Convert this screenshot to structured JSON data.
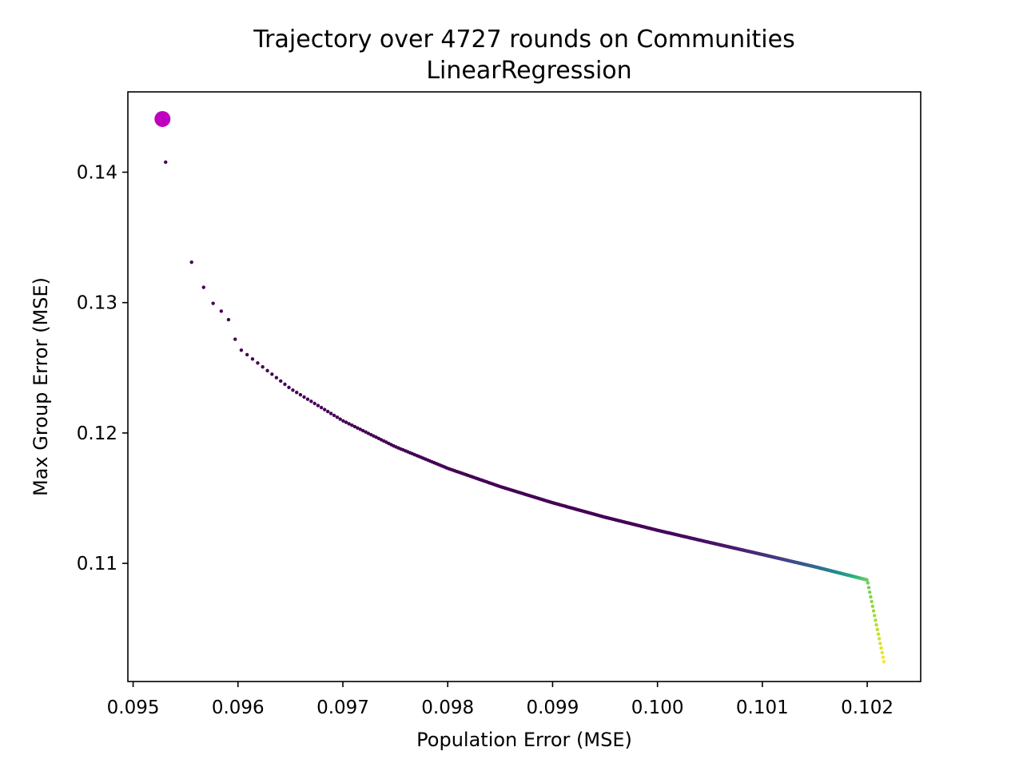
{
  "chart_data": {
    "type": "scatter",
    "title": "Trajectory over 4727 rounds on Communities",
    "subtitle": "LinearRegression",
    "xlabel": "Population Error (MSE)",
    "ylabel": "Max Group Error (MSE)",
    "xlim": [
      0.09495,
      0.10251
    ],
    "ylim": [
      0.10094,
      0.14616
    ],
    "xticks": [
      "0.095",
      "0.096",
      "0.097",
      "0.098",
      "0.099",
      "0.100",
      "0.101",
      "0.102"
    ],
    "yticks": [
      "0.11",
      "0.12",
      "0.13",
      "0.14"
    ],
    "grid": false,
    "colormap": "viridis",
    "start_point": {
      "x": 0.09528,
      "y": 0.14408,
      "color": "#bf00bf"
    },
    "trajectory": {
      "n_rounds": 4727,
      "start": {
        "x": 0.09531,
        "y": 0.14077
      },
      "end": {
        "x": 0.10216,
        "y": 0.10245
      },
      "sample_points": [
        [
          0.09531,
          0.14077
        ],
        [
          0.09537,
          0.13829
        ],
        [
          0.09543,
          0.13634
        ],
        [
          0.09549,
          0.13468
        ],
        [
          0.09555,
          0.13323
        ],
        [
          0.09562,
          0.132
        ],
        [
          0.09569,
          0.13089
        ],
        [
          0.09577,
          0.12985
        ],
        [
          0.0959,
          0.12892
        ],
        [
          0.096,
          0.12655
        ],
        [
          0.0965,
          0.1234
        ],
        [
          0.097,
          0.12094
        ],
        [
          0.0975,
          0.11895
        ],
        [
          0.098,
          0.11729
        ],
        [
          0.0985,
          0.11589
        ],
        [
          0.099,
          0.11465
        ],
        [
          0.0995,
          0.11354
        ],
        [
          0.1,
          0.11254
        ],
        [
          0.1005,
          0.1116
        ],
        [
          0.101,
          0.11068
        ],
        [
          0.1015,
          0.10974
        ],
        [
          0.102,
          0.10873
        ],
        [
          0.10216,
          0.10245
        ]
      ]
    }
  }
}
